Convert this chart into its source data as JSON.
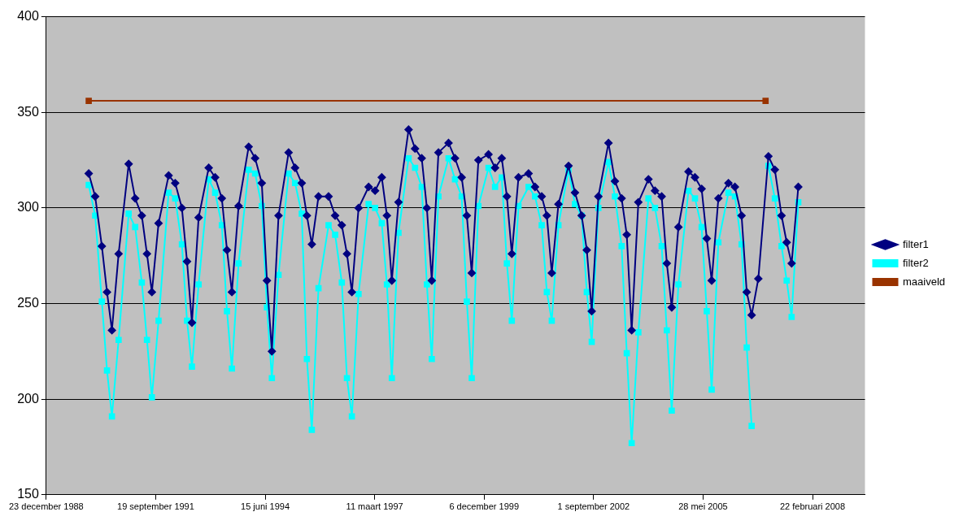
{
  "chart_data": {
    "type": "line",
    "x": [
      "1990-01-15",
      "1990-03-15",
      "1990-05-15",
      "1990-07-01",
      "1990-08-15",
      "1990-10-15",
      "1991-01-15",
      "1991-03-15",
      "1991-05-15",
      "1991-07-01",
      "1991-08-15",
      "1991-10-15",
      "1992-01-15",
      "1992-03-15",
      "1992-05-15",
      "1992-07-01",
      "1992-08-15",
      "1992-10-15",
      "1993-01-15",
      "1993-03-15",
      "1993-05-15",
      "1993-07-01",
      "1993-08-15",
      "1993-10-15",
      "1994-01-15",
      "1994-03-15",
      "1994-05-15",
      "1994-07-01",
      "1994-08-15",
      "1994-10-15",
      "1995-01-15",
      "1995-03-15",
      "1995-05-15",
      "1995-07-01",
      "1995-08-15",
      "1995-10-15",
      "1996-01-15",
      "1996-03-15",
      "1996-05-15",
      "1996-07-01",
      "1996-08-15",
      "1996-10-15",
      "1997-01-15",
      "1997-03-15",
      "1997-05-15",
      "1997-07-01",
      "1997-08-15",
      "1997-10-15",
      "1998-01-15",
      "1998-03-15",
      "1998-05-15",
      "1998-07-01",
      "1998-08-15",
      "1998-10-15",
      "1999-01-15",
      "1999-03-15",
      "1999-05-15",
      "1999-07-01",
      "1999-08-15",
      "1999-10-15",
      "2000-01-15",
      "2000-03-15",
      "2000-05-15",
      "2000-07-01",
      "2000-08-15",
      "2000-10-15",
      "2001-01-15",
      "2001-03-15",
      "2001-05-15",
      "2001-07-01",
      "2001-08-15",
      "2001-10-15",
      "2002-01-15",
      "2002-03-15",
      "2002-05-15",
      "2002-07-01",
      "2002-08-15",
      "2002-10-15",
      "2003-01-15",
      "2003-03-15",
      "2003-05-15",
      "2003-07-01",
      "2003-08-15",
      "2003-10-15",
      "2004-01-15",
      "2004-03-15",
      "2004-05-15",
      "2004-07-01",
      "2004-08-15",
      "2004-10-15",
      "2005-01-15",
      "2005-03-15",
      "2005-05-15",
      "2005-07-01",
      "2005-08-15",
      "2005-10-15",
      "2006-01-15",
      "2006-03-15",
      "2006-05-15",
      "2006-07-01",
      "2006-08-15",
      "2006-10-15",
      "2007-01-15",
      "2007-03-15",
      "2007-05-15",
      "2007-07-01",
      "2007-08-15",
      "2007-10-15"
    ],
    "series": [
      {
        "name": "filter1",
        "color": "#000080",
        "marker": "diamond",
        "values": [
          318,
          306,
          280,
          256,
          236,
          276,
          323,
          305,
          296,
          276,
          256,
          292,
          317,
          313,
          300,
          272,
          240,
          295,
          321,
          316,
          305,
          278,
          256,
          301,
          332,
          326,
          313,
          262,
          225,
          296,
          329,
          321,
          313,
          296,
          281,
          306,
          306,
          296,
          291,
          276,
          256,
          300,
          311,
          309,
          316,
          296,
          262,
          303,
          341,
          331,
          326,
          300,
          262,
          329,
          334,
          326,
          316,
          296,
          266,
          325,
          328,
          321,
          326,
          306,
          276,
          316,
          318,
          311,
          306,
          296,
          266,
          302,
          322,
          308,
          296,
          278,
          246,
          306,
          334,
          314,
          305,
          286,
          236,
          303,
          315,
          309,
          306,
          271,
          248,
          290,
          319,
          316,
          310,
          284,
          262,
          305,
          313,
          311,
          296,
          256,
          244,
          263,
          327,
          320,
          296,
          282,
          271,
          311
        ]
      },
      {
        "name": "filter2",
        "color": "#00ffff",
        "marker": "square",
        "values": [
          312,
          296,
          251,
          215,
          191,
          231,
          297,
          290,
          261,
          231,
          201,
          241,
          308,
          305,
          281,
          241,
          217,
          260,
          315,
          308,
          291,
          246,
          216,
          271,
          320,
          318,
          301,
          248,
          211,
          265,
          318,
          313,
          297,
          221,
          184,
          258,
          291,
          286,
          261,
          211,
          191,
          255,
          302,
          300,
          292,
          260,
          211,
          287,
          326,
          321,
          311,
          260,
          221,
          306,
          326,
          315,
          306,
          251,
          211,
          301,
          321,
          311,
          316,
          271,
          241,
          301,
          311,
          306,
          291,
          256,
          241,
          291,
          320,
          302,
          296,
          256,
          230,
          300,
          324,
          306,
          280,
          224,
          177,
          235,
          305,
          300,
          280,
          236,
          194,
          260,
          309,
          305,
          290,
          246,
          205,
          282,
          308,
          306,
          281,
          227,
          186,
          null,
          322,
          305,
          280,
          262,
          243,
          303
        ]
      },
      {
        "name": "maaiveld",
        "color": "#993300",
        "marker": "square",
        "x": [
          "1990-01-15",
          "2006-12-20"
        ],
        "values": [
          356,
          356
        ]
      }
    ],
    "xlim": [
      "1988-12-23",
      "2009-06-15"
    ],
    "xticks": [
      {
        "value": "1988-12-23",
        "label": "23 december 1988"
      },
      {
        "value": "1991-09-19",
        "label": "19 september 1991"
      },
      {
        "value": "1994-06-15",
        "label": "15 juni 1994"
      },
      {
        "value": "1997-03-11",
        "label": "11 maart 1997"
      },
      {
        "value": "1999-12-06",
        "label": "6 december 1999"
      },
      {
        "value": "2002-09-01",
        "label": "1 september 2002"
      },
      {
        "value": "2005-05-28",
        "label": "28 mei 2005"
      },
      {
        "value": "2008-02-22",
        "label": "22 februari 2008"
      }
    ],
    "ylim": [
      150,
      400
    ],
    "yticks": [
      150,
      200,
      250,
      300,
      350,
      400
    ],
    "grid": "y",
    "legend": "right",
    "line_style": "solid"
  }
}
